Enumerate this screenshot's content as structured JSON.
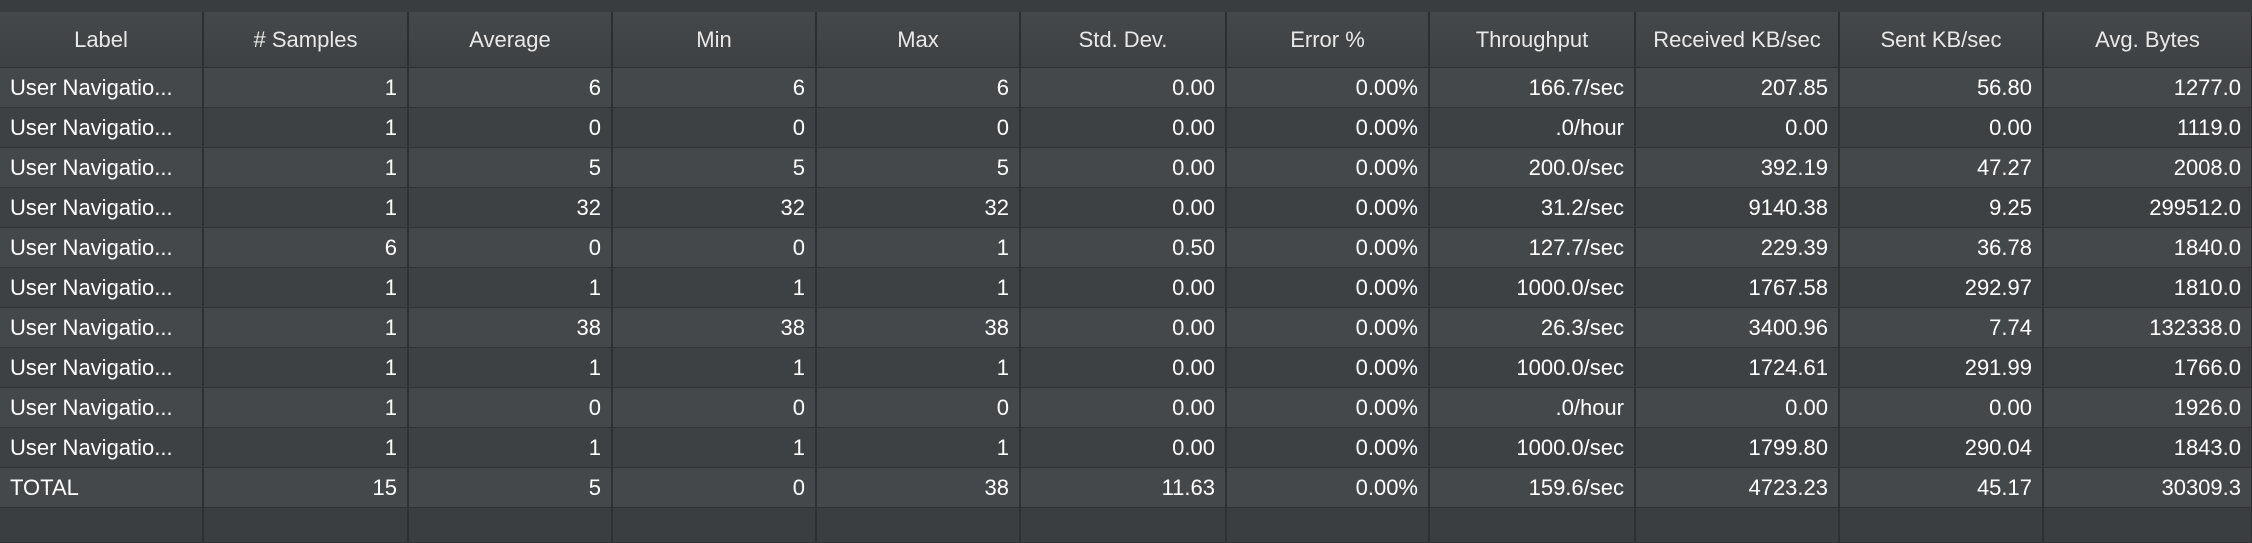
{
  "table": {
    "headers": [
      "Label",
      "# Samples",
      "Average",
      "Min",
      "Max",
      "Std. Dev.",
      "Error %",
      "Throughput",
      "Received KB/sec",
      "Sent KB/sec",
      "Avg. Bytes"
    ],
    "rows": [
      [
        "User Navigatio...",
        "1",
        "6",
        "6",
        "6",
        "0.00",
        "0.00%",
        "166.7/sec",
        "207.85",
        "56.80",
        "1277.0"
      ],
      [
        "User Navigatio...",
        "1",
        "0",
        "0",
        "0",
        "0.00",
        "0.00%",
        ".0/hour",
        "0.00",
        "0.00",
        "1119.0"
      ],
      [
        "User Navigatio...",
        "1",
        "5",
        "5",
        "5",
        "0.00",
        "0.00%",
        "200.0/sec",
        "392.19",
        "47.27",
        "2008.0"
      ],
      [
        "User Navigatio...",
        "1",
        "32",
        "32",
        "32",
        "0.00",
        "0.00%",
        "31.2/sec",
        "9140.38",
        "9.25",
        "299512.0"
      ],
      [
        "User Navigatio...",
        "6",
        "0",
        "0",
        "1",
        "0.50",
        "0.00%",
        "127.7/sec",
        "229.39",
        "36.78",
        "1840.0"
      ],
      [
        "User Navigatio...",
        "1",
        "1",
        "1",
        "1",
        "0.00",
        "0.00%",
        "1000.0/sec",
        "1767.58",
        "292.97",
        "1810.0"
      ],
      [
        "User Navigatio...",
        "1",
        "38",
        "38",
        "38",
        "0.00",
        "0.00%",
        "26.3/sec",
        "3400.96",
        "7.74",
        "132338.0"
      ],
      [
        "User Navigatio...",
        "1",
        "1",
        "1",
        "1",
        "0.00",
        "0.00%",
        "1000.0/sec",
        "1724.61",
        "291.99",
        "1766.0"
      ],
      [
        "User Navigatio...",
        "1",
        "0",
        "0",
        "0",
        "0.00",
        "0.00%",
        ".0/hour",
        "0.00",
        "0.00",
        "1926.0"
      ],
      [
        "User Navigatio...",
        "1",
        "1",
        "1",
        "1",
        "0.00",
        "0.00%",
        "1000.0/sec",
        "1799.80",
        "290.04",
        "1843.0"
      ],
      [
        "TOTAL",
        "15",
        "5",
        "0",
        "38",
        "11.63",
        "0.00%",
        "159.6/sec",
        "4723.23",
        "45.17",
        "30309.3"
      ]
    ]
  }
}
